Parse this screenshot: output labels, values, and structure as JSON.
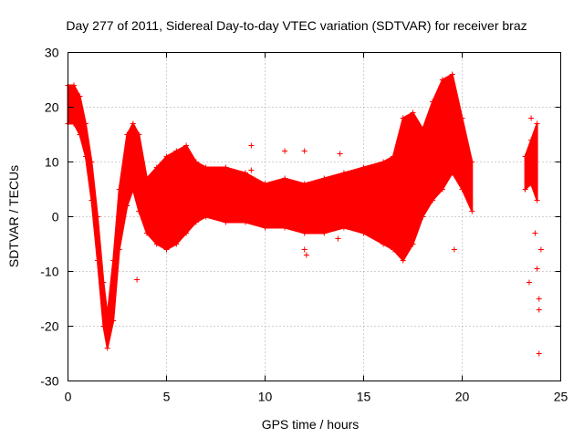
{
  "chart_data": {
    "type": "scatter",
    "title": "Day 277 of 2011, Sidereal Day-to-day VTEC variation (SDTVAR) for receiver braz",
    "xlabel": "GPS time / hours",
    "ylabel": "SDTVAR / TECUs",
    "xlim": [
      0,
      25
    ],
    "ylim": [
      -30,
      30
    ],
    "x_ticks": [
      0,
      5,
      10,
      15,
      20,
      25
    ],
    "y_ticks": [
      -30,
      -20,
      -10,
      0,
      10,
      20,
      30
    ],
    "grid": true,
    "marker": "+",
    "color": "#ff0000",
    "series": [
      {
        "name": "upper envelope",
        "x": [
          0.0,
          0.3,
          0.6,
          0.9,
          1.2,
          1.5,
          1.8,
          2.0,
          2.3,
          2.6,
          3.0,
          3.3,
          3.6,
          4.0,
          4.5,
          5.0,
          5.5,
          6.0,
          6.5,
          7.0,
          8.0,
          9.0,
          10.0,
          11.0,
          12.0,
          13.0,
          14.0,
          15.0,
          16.0,
          16.5,
          17.0,
          17.5,
          18.0,
          18.5,
          19.0,
          19.5,
          20.0,
          20.5,
          23.2,
          23.5,
          23.8
        ],
        "y": [
          24,
          24,
          22,
          17,
          10,
          0,
          -12,
          -18,
          -8,
          5,
          15,
          17,
          15,
          7,
          9,
          11,
          12,
          13,
          10,
          9,
          9,
          8,
          6,
          7,
          6,
          7,
          8,
          9,
          10,
          11,
          18,
          19,
          16,
          21,
          25,
          26,
          18,
          10,
          11,
          14,
          17
        ]
      },
      {
        "name": "lower envelope",
        "x": [
          0.0,
          0.3,
          0.6,
          0.9,
          1.2,
          1.5,
          1.8,
          2.0,
          2.3,
          2.6,
          3.0,
          3.3,
          3.6,
          4.0,
          4.5,
          5.0,
          5.5,
          6.0,
          6.5,
          7.0,
          8.0,
          9.0,
          10.0,
          11.0,
          12.0,
          13.0,
          14.0,
          15.0,
          16.0,
          16.5,
          17.0,
          17.5,
          18.0,
          18.5,
          19.0,
          19.5,
          20.0,
          20.5,
          23.2,
          23.5,
          23.8
        ],
        "y": [
          17,
          17,
          15,
          11,
          3,
          -8,
          -20,
          -24,
          -19,
          -6,
          2,
          5,
          1,
          -3,
          -5,
          -6,
          -5,
          -3,
          -1,
          0,
          -1,
          -1,
          -2,
          -2,
          -3,
          -3,
          -2,
          -3,
          -5,
          -6,
          -8,
          -5,
          0,
          3,
          5,
          8,
          5,
          1,
          5,
          6,
          3
        ]
      }
    ],
    "outliers": {
      "x": [
        3.5,
        9.3,
        9.3,
        11.0,
        12.0,
        12.0,
        12.1,
        13.8,
        13.7,
        19.6,
        23.4,
        23.5,
        23.6,
        23.7,
        23.8,
        23.9,
        23.9,
        23.9,
        24.0
      ],
      "y": [
        -11.5,
        13,
        8.5,
        12,
        12,
        -6,
        -7,
        11.5,
        -4,
        -6,
        -12,
        18,
        12,
        -3,
        -9.5,
        -15,
        -17,
        -25,
        -6
      ]
    }
  }
}
